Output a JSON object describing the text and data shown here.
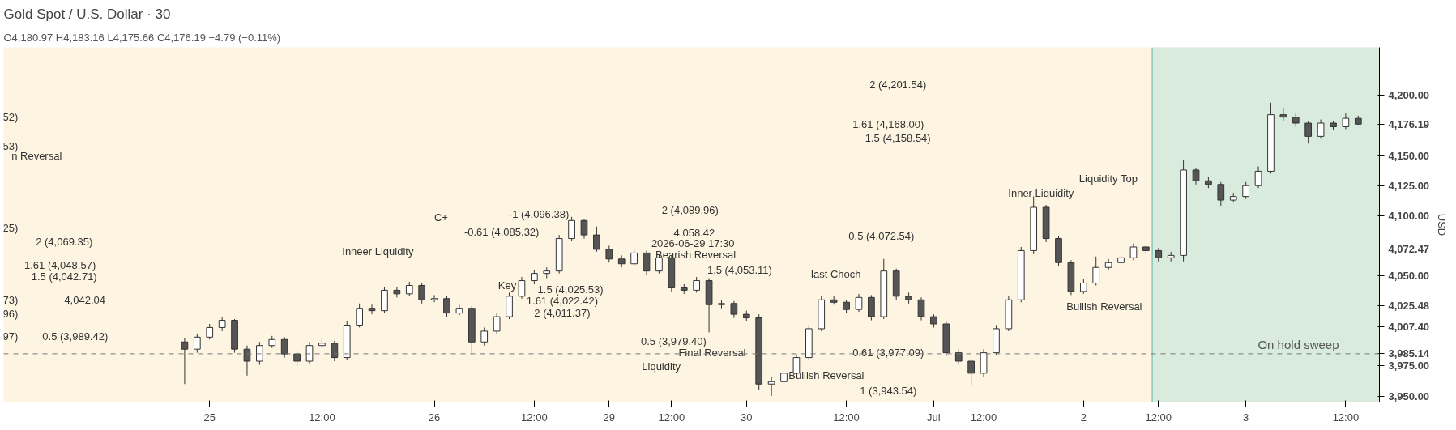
{
  "chart_data": {
    "type": "candlestick",
    "title": "Gold Spot / U.S. Dollar · 30",
    "subtitle": "O4,180.97 H4,183.16 L4,175.66 C4,176.19 −4.79 (−0.11%)",
    "ylabel": "USD",
    "categories": [
      null,
      null,
      "25",
      null,
      null,
      null,
      null,
      null,
      null,
      null,
      null,
      "12:00",
      null,
      null,
      null,
      null,
      null,
      null,
      null,
      null,
      "26",
      null,
      null,
      null,
      null,
      null,
      null,
      null,
      "12:00",
      null,
      null,
      null,
      null,
      null,
      "29",
      null,
      null,
      null,
      null,
      "12:00",
      null,
      null,
      null,
      null,
      null,
      "30",
      null,
      null,
      null,
      null,
      null,
      null,
      null,
      "12:00",
      null,
      null,
      null,
      null,
      null,
      null,
      "Jul",
      null,
      null,
      null,
      "12:00",
      null,
      null,
      null,
      null,
      null,
      null,
      null,
      "2",
      null,
      null,
      null,
      null,
      null,
      "12:00",
      null,
      null,
      null,
      null,
      null,
      null,
      "3",
      null,
      null,
      null,
      null,
      null,
      null,
      null,
      "12:00",
      null
    ],
    "ohlc": [
      [
        3995,
        3998,
        3960,
        3989
      ],
      [
        3989,
        4002,
        3986,
        3999
      ],
      [
        3999,
        4010,
        3997,
        4007
      ],
      [
        4007,
        4016,
        4004,
        4013
      ],
      [
        4013,
        4014,
        3986,
        3989
      ],
      [
        3989,
        3992,
        3967,
        3979
      ],
      [
        3979,
        3995,
        3976,
        3992
      ],
      [
        3992,
        4000,
        3990,
        3997
      ],
      [
        3997,
        3999,
        3982,
        3985
      ],
      [
        3985,
        3988,
        3975,
        3979
      ],
      [
        3979,
        3995,
        3977,
        3992
      ],
      [
        3992,
        3998,
        3990,
        3994
      ],
      [
        3994,
        3996,
        3979,
        3982
      ],
      [
        3982,
        4012,
        3980,
        4009
      ],
      [
        4009,
        4027,
        4007,
        4023
      ],
      [
        4023,
        4026,
        4018,
        4021
      ],
      [
        4021,
        4041,
        4019,
        4038
      ],
      [
        4038,
        4041,
        4032,
        4035
      ],
      [
        4035,
        4045,
        4033,
        4042
      ],
      [
        4042,
        4044,
        4027,
        4030
      ],
      [
        4030,
        4034,
        4028,
        4031
      ],
      [
        4031,
        4033,
        4016,
        4019
      ],
      [
        4019,
        4026,
        4017,
        4023
      ],
      [
        4023,
        4025,
        3985,
        3995
      ],
      [
        3995,
        4007,
        3992,
        4004
      ],
      [
        4004,
        4019,
        4002,
        4016
      ],
      [
        4016,
        4036,
        4014,
        4033
      ],
      [
        4033,
        4049,
        4031,
        4046
      ],
      [
        4046,
        4055,
        4043,
        4052
      ],
      [
        4052,
        4057,
        4048,
        4054
      ],
      [
        4054,
        4084,
        4052,
        4081
      ],
      [
        4081,
        4099,
        4079,
        4096
      ],
      [
        4096,
        4097,
        4081,
        4084
      ],
      [
        4084,
        4091,
        4070,
        4072
      ],
      [
        4072,
        4075,
        4061,
        4064
      ],
      [
        4064,
        4067,
        4057,
        4060
      ],
      [
        4060,
        4072,
        4058,
        4069
      ],
      [
        4069,
        4071,
        4051,
        4054
      ],
      [
        4054,
        4068,
        4052,
        4065
      ],
      [
        4065,
        4067,
        4037,
        4040
      ],
      [
        4040,
        4043,
        4035,
        4038
      ],
      [
        4038,
        4049,
        4036,
        4046
      ],
      [
        4046,
        4048,
        4003,
        4026
      ],
      [
        4026,
        4030,
        4023,
        4027
      ],
      [
        4027,
        4029,
        4015,
        4018
      ],
      [
        4018,
        4021,
        4012,
        4015
      ],
      [
        4015,
        4018,
        3955,
        3960
      ],
      [
        3960,
        3966,
        3950,
        3962
      ],
      [
        3962,
        3972,
        3958,
        3969
      ],
      [
        3969,
        3985,
        3966,
        3982
      ],
      [
        3982,
        4009,
        3980,
        4006
      ],
      [
        4006,
        4033,
        4004,
        4030
      ],
      [
        4030,
        4033,
        4026,
        4028
      ],
      [
        4028,
        4030,
        4019,
        4022
      ],
      [
        4022,
        4035,
        4020,
        4032
      ],
      [
        4032,
        4034,
        4013,
        4016
      ],
      [
        4016,
        4064,
        4014,
        4054
      ],
      [
        4054,
        4056,
        4030,
        4033
      ],
      [
        4033,
        4036,
        4027,
        4030
      ],
      [
        4030,
        4032,
        4013,
        4016
      ],
      [
        4016,
        4018,
        4007,
        4010
      ],
      [
        4010,
        4012,
        3983,
        3986
      ],
      [
        3986,
        3989,
        3976,
        3979
      ],
      [
        3979,
        3981,
        3959,
        3969
      ],
      [
        3969,
        3989,
        3966,
        3986
      ],
      [
        3986,
        4009,
        3984,
        4006
      ],
      [
        4006,
        4033,
        4004,
        4030
      ],
      [
        4030,
        4074,
        4028,
        4071
      ],
      [
        4071,
        4116,
        4068,
        4107
      ],
      [
        4107,
        4109,
        4078,
        4081
      ],
      [
        4081,
        4083,
        4058,
        4061
      ],
      [
        4061,
        4063,
        4034,
        4037
      ],
      [
        4037,
        4047,
        4035,
        4044
      ],
      [
        4044,
        4066,
        4042,
        4057
      ],
      [
        4057,
        4064,
        4055,
        4061
      ],
      [
        4061,
        4068,
        4059,
        4065
      ],
      [
        4065,
        4077,
        4063,
        4074
      ],
      [
        4074,
        4076,
        4068,
        4071
      ],
      [
        4071,
        4073,
        4062,
        4065
      ],
      [
        4065,
        4070,
        4062,
        4067
      ],
      [
        4067,
        4146,
        4062,
        4138
      ],
      [
        4138,
        4140,
        4126,
        4129
      ],
      [
        4129,
        4132,
        4123,
        4126
      ],
      [
        4126,
        4128,
        4108,
        4113
      ],
      [
        4113,
        4119,
        4111,
        4116
      ],
      [
        4116,
        4128,
        4114,
        4125
      ],
      [
        4125,
        4141,
        4123,
        4137
      ],
      [
        4137,
        4194,
        4135,
        4184
      ],
      [
        4184,
        4190,
        4179,
        4182
      ],
      [
        4182,
        4185,
        4174,
        4177
      ],
      [
        4177,
        4179,
        4160,
        4166
      ],
      [
        4166,
        4180,
        4164,
        4177
      ],
      [
        4177,
        4179,
        4171,
        4174
      ],
      [
        4174,
        4185,
        4172,
        4181
      ],
      [
        4180.97,
        4183.16,
        4175.66,
        4176.19
      ]
    ],
    "ylim": [
      3945,
      4240
    ],
    "yticks": [
      {
        "value": 3950,
        "label": "3,950.00"
      },
      {
        "value": 3975,
        "label": "3,975.00"
      },
      {
        "value": 3985.14,
        "label": "3,985.14"
      },
      {
        "value": 4007.4,
        "label": "4,007.40"
      },
      {
        "value": 4025.48,
        "label": "4,025.48"
      },
      {
        "value": 4050,
        "label": "4,050.00"
      },
      {
        "value": 4072.47,
        "label": "4,072.47"
      },
      {
        "value": 4100,
        "label": "4,100.00"
      },
      {
        "value": 4125,
        "label": "4,125.00"
      },
      {
        "value": 4150,
        "label": "4,150.00"
      },
      {
        "value": 4176.19,
        "label": "4,176.19"
      },
      {
        "value": 4200,
        "label": "4,200.00"
      }
    ],
    "ref_lines": [
      {
        "axis": "y",
        "value": 3985.14,
        "label": "On hold sweep",
        "color": "#777777",
        "line_style": "dashed"
      }
    ],
    "grid": false,
    "annotations": [
      "52)",
      "53)",
      "n Reversal",
      "25)",
      "2 (4,069.35)",
      "1.61 (4,048.57)",
      "1.5 (4,042.71)",
      "4,042.04",
      "73)",
      "96)",
      "0.5 (3,989.42)",
      "97)",
      "-1 (4,096.38)",
      "-0.61 (4,085.32)",
      "C+",
      "2 (4,089.96)",
      "4,058.42",
      "2026-06-29 17:30",
      "Bearish Reversal",
      "1.5 (4,053.11)",
      "Inneer Liquidity",
      "Key",
      "1.5 (4,025.53)",
      "1.61 (4,022.42)",
      "2 (4,011.37)",
      "0.5 (3,979.40)",
      "Final Reversal",
      "Liquidity",
      "Bullish Reversal",
      "last Choch",
      "0.61 (3,977.09)",
      "1 (3,943.54)",
      "0.5 (4,072.54)",
      "Inner Liquidity",
      "Liquidity Top",
      "Bullish Reversal",
      "2 (4,201.54)",
      "1.61 (4,168.00)",
      "1.5 (4,158.54)"
    ]
  }
}
